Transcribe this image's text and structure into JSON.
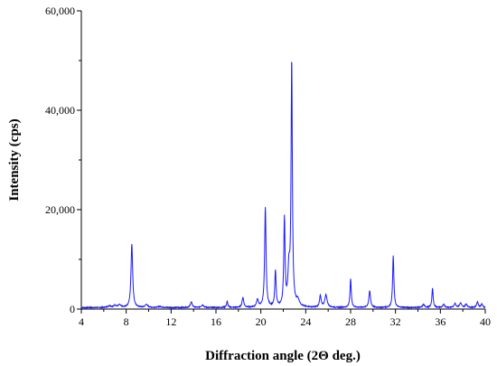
{
  "chart_data": {
    "type": "line",
    "title": "",
    "xlabel": "Diffraction angle (2Θ deg.)",
    "ylabel": "Intensity (cps)",
    "xlim": [
      4,
      40
    ],
    "ylim": [
      0,
      60000
    ],
    "x_ticks": [
      4,
      8,
      12,
      16,
      20,
      24,
      28,
      32,
      36,
      40
    ],
    "x_tick_labels": [
      "4",
      "8",
      "12",
      "16",
      "20",
      "24",
      "28",
      "32",
      "36",
      "40"
    ],
    "y_ticks": [
      0,
      20000,
      40000,
      60000
    ],
    "y_tick_labels": [
      "0",
      "20,000",
      "40,000",
      "60,000"
    ],
    "grid": false,
    "legend": "none",
    "line_color": "#1a1aff",
    "baseline": 300,
    "peaks": [
      {
        "x": 6.5,
        "y": 350,
        "w": 0.25
      },
      {
        "x": 7.0,
        "y": 400,
        "w": 0.2
      },
      {
        "x": 7.4,
        "y": 500,
        "w": 0.2
      },
      {
        "x": 8.5,
        "y": 12800,
        "w": 0.13
      },
      {
        "x": 9.8,
        "y": 600,
        "w": 0.2
      },
      {
        "x": 11.0,
        "y": 200,
        "w": 0.3
      },
      {
        "x": 13.8,
        "y": 1100,
        "w": 0.15
      },
      {
        "x": 14.8,
        "y": 500,
        "w": 0.2
      },
      {
        "x": 17.0,
        "y": 1200,
        "w": 0.1
      },
      {
        "x": 18.4,
        "y": 2000,
        "w": 0.13
      },
      {
        "x": 19.7,
        "y": 1500,
        "w": 0.15
      },
      {
        "x": 20.4,
        "y": 20000,
        "w": 0.11
      },
      {
        "x": 21.3,
        "y": 7300,
        "w": 0.1
      },
      {
        "x": 22.1,
        "y": 17600,
        "w": 0.1
      },
      {
        "x": 22.5,
        "y": 7000,
        "w": 0.15
      },
      {
        "x": 22.75,
        "y": 49000,
        "w": 0.1
      },
      {
        "x": 23.3,
        "y": 1200,
        "w": 0.25
      },
      {
        "x": 25.3,
        "y": 2400,
        "w": 0.12
      },
      {
        "x": 25.8,
        "y": 2500,
        "w": 0.18
      },
      {
        "x": 28.0,
        "y": 5700,
        "w": 0.1
      },
      {
        "x": 29.7,
        "y": 3300,
        "w": 0.13
      },
      {
        "x": 31.8,
        "y": 10400,
        "w": 0.1
      },
      {
        "x": 34.5,
        "y": 600,
        "w": 0.15
      },
      {
        "x": 35.3,
        "y": 3800,
        "w": 0.1
      },
      {
        "x": 36.3,
        "y": 600,
        "w": 0.15
      },
      {
        "x": 37.3,
        "y": 800,
        "w": 0.15
      },
      {
        "x": 37.8,
        "y": 900,
        "w": 0.15
      },
      {
        "x": 38.3,
        "y": 700,
        "w": 0.15
      },
      {
        "x": 39.3,
        "y": 1100,
        "w": 0.13
      },
      {
        "x": 39.7,
        "y": 700,
        "w": 0.13
      }
    ]
  }
}
